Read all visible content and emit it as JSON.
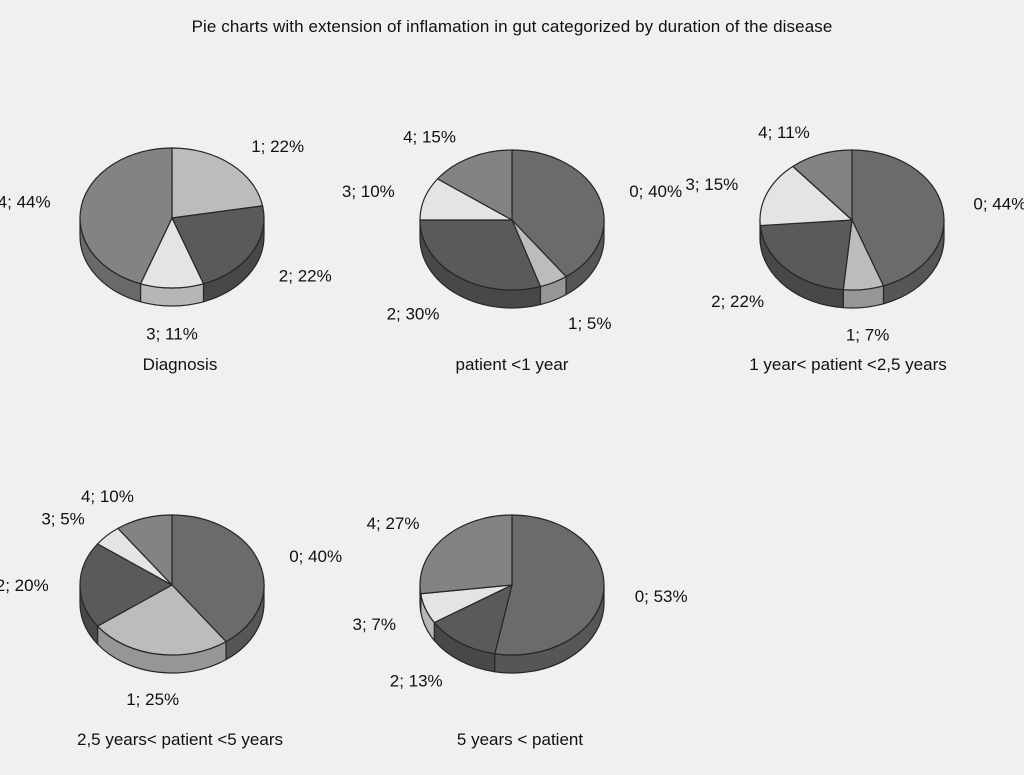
{
  "title": "Pie charts with extension of inflamation in gut categorized by duration of the disease",
  "colors": {
    "0": "#6b6b6b",
    "1": "#bcbcbc",
    "2": "#5a5a5a",
    "3": "#e4e4e4",
    "4": "#838383",
    "edge": "#262626",
    "background": "#f0f0f0"
  },
  "chart_data": [
    {
      "type": "pie",
      "title": "Diagnosis",
      "slices": [
        {
          "category": "1",
          "value": 22,
          "label": "1; 22%"
        },
        {
          "category": "2",
          "value": 22,
          "label": "2; 22%"
        },
        {
          "category": "3",
          "value": 11,
          "label": "3; 11%"
        },
        {
          "category": "4",
          "value": 44,
          "label": "4; 44%"
        }
      ]
    },
    {
      "type": "pie",
      "title": "patient <1 year",
      "slices": [
        {
          "category": "0",
          "value": 40,
          "label": "0; 40%"
        },
        {
          "category": "1",
          "value": 5,
          "label": "1; 5%"
        },
        {
          "category": "2",
          "value": 30,
          "label": "2; 30%"
        },
        {
          "category": "3",
          "value": 10,
          "label": "3; 10%"
        },
        {
          "category": "4",
          "value": 15,
          "label": "4; 15%"
        }
      ]
    },
    {
      "type": "pie",
      "title": "1 year< patient <2,5 years",
      "slices": [
        {
          "category": "0",
          "value": 44,
          "label": "0; 44%"
        },
        {
          "category": "1",
          "value": 7,
          "label": "1; 7%"
        },
        {
          "category": "2",
          "value": 22,
          "label": "2; 22%"
        },
        {
          "category": "3",
          "value": 15,
          "label": "3; 15%"
        },
        {
          "category": "4",
          "value": 11,
          "label": "4; 11%"
        }
      ]
    },
    {
      "type": "pie",
      "title": "2,5 years< patient <5 years",
      "slices": [
        {
          "category": "0",
          "value": 40,
          "label": "0; 40%"
        },
        {
          "category": "1",
          "value": 25,
          "label": "1; 25%"
        },
        {
          "category": "2",
          "value": 20,
          "label": "2; 20%"
        },
        {
          "category": "3",
          "value": 5,
          "label": "3; 5%"
        },
        {
          "category": "4",
          "value": 10,
          "label": "4; 10%"
        }
      ]
    },
    {
      "type": "pie",
      "title": "5 years < patient",
      "slices": [
        {
          "category": "0",
          "value": 53,
          "label": "0; 53%"
        },
        {
          "category": "2",
          "value": 13,
          "label": "2; 13%"
        },
        {
          "category": "3",
          "value": 7,
          "label": "3; 7%"
        },
        {
          "category": "4",
          "value": 27,
          "label": "4; 27%"
        }
      ]
    }
  ]
}
